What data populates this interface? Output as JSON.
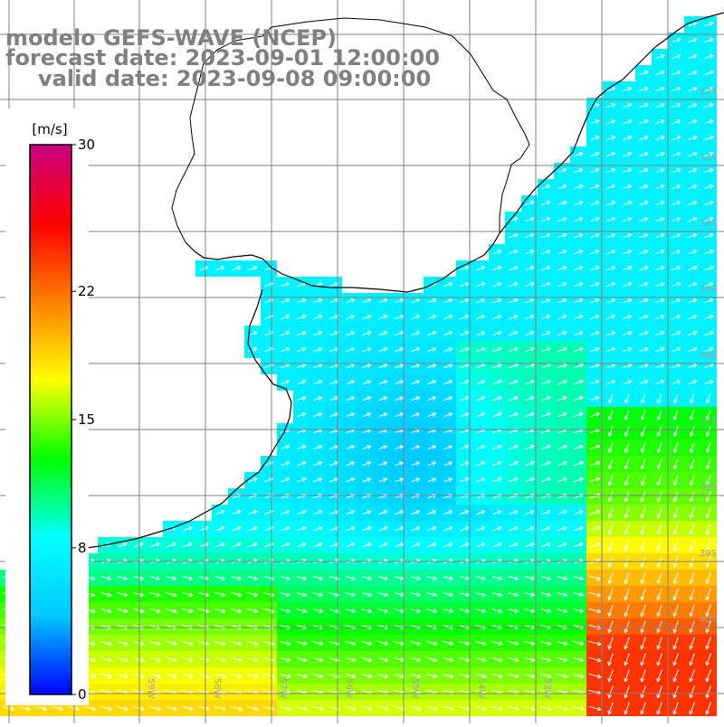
{
  "title": {
    "line1": "modelo GEFS-WAVE (NCEP)",
    "line2": "forecast date: 2023-09-01 12:00:00",
    "line3": "valid date: 2023-09-08 09:00:00"
  },
  "colorbar": {
    "unit": "[m/s]",
    "ticks": [
      "30",
      "22",
      "15",
      "8",
      "0"
    ],
    "colors": [
      "#0000ff",
      "#00c8ff",
      "#00ffff",
      "#00ff00",
      "#ffff00",
      "#ff8000",
      "#ff0000",
      "#c80080"
    ]
  },
  "latitude_labels": [
    "32S",
    "33S",
    "34S",
    "35S",
    "36S",
    "37S",
    "38S",
    "39S",
    "40S"
  ],
  "longitude_labels": [
    "61W",
    "60W",
    "59W",
    "58W",
    "57W",
    "56W",
    "55W",
    "54W",
    "53W"
  ],
  "field": {
    "variable": "wind speed",
    "units": "m/s",
    "colors": {
      "land": "#ffffff",
      "coastline": "#000000",
      "grid": "#808080",
      "arrow": "#ffffff"
    }
  }
}
